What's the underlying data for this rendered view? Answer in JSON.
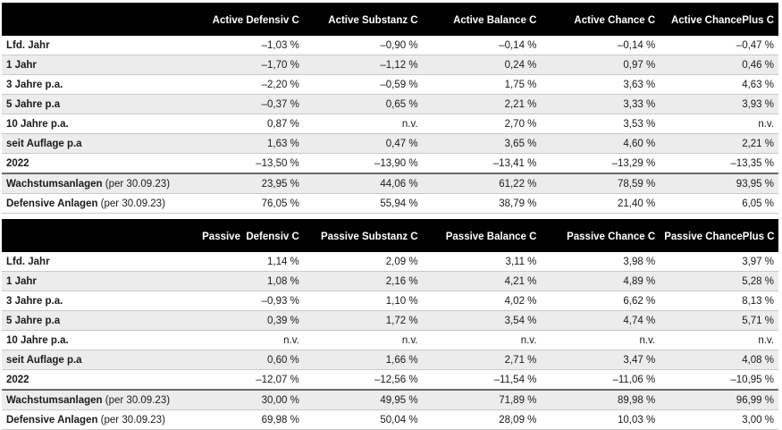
{
  "active": {
    "headers": [
      "Active Defensiv C",
      "Active Substanz C",
      "Active Balance C",
      "Active Chance C",
      "Active ChancePlus C"
    ],
    "rows": [
      {
        "label": "Lfd. Jahr",
        "values": [
          "–1,03 %",
          "–0,90 %",
          "–0,14 %",
          "–0,14 %",
          "–0,47 %"
        ]
      },
      {
        "label": "1 Jahr",
        "values": [
          "–1,70 %",
          "–1,12 %",
          "0,24 %",
          "0,97 %",
          "0,46 %"
        ]
      },
      {
        "label": "3 Jahre p.a.",
        "values": [
          "–2,20 %",
          "–0,59 %",
          "1,75 %",
          "3,63 %",
          "4,63 %"
        ]
      },
      {
        "label": "5 Jahre p.a",
        "values": [
          "–0,37 %",
          "0,65 %",
          "2,21 %",
          "3,33 %",
          "3,93 %"
        ]
      },
      {
        "label": "10 Jahre p.a.",
        "values": [
          "0,87 %",
          "n.v.",
          "2,70 %",
          "3,53 %",
          "n.v."
        ]
      },
      {
        "label": "seit Auflage p.a",
        "values": [
          "1,63 %",
          "0,47 %",
          "3,65 %",
          "4,60 %",
          "2,21 %"
        ]
      },
      {
        "label": "2022",
        "values": [
          "–13,50 %",
          "–13,90 %",
          "–13,41 %",
          "–13,29 %",
          "–13,35 %"
        ]
      },
      {
        "label": "Wachstumsanlagen",
        "note": "(per 30.09.23)",
        "values": [
          "23,95 %",
          "44,06 %",
          "61,22 %",
          "78,59 %",
          "93,95 %"
        ]
      },
      {
        "label": "Defensive Anlagen",
        "note": "(per 30.09.23)",
        "values": [
          "76,05 %",
          "55,94 %",
          "38,79 %",
          "21,40 %",
          "6,05 %"
        ]
      }
    ]
  },
  "passive": {
    "headers": [
      "Passive  Defensiv C",
      "Passive Substanz C",
      "Passive Balance C",
      "Passive Chance C",
      "Passive ChancePlus C"
    ],
    "rows": [
      {
        "label": "Lfd. Jahr",
        "values": [
          "1,14 %",
          "2,09 %",
          "3,11 %",
          "3,98 %",
          "3,97 %"
        ]
      },
      {
        "label": "1 Jahr",
        "values": [
          "1,08 %",
          "2,16 %",
          "4,21 %",
          "4,89 %",
          "5,28 %"
        ]
      },
      {
        "label": "3 Jahre p.a.",
        "values": [
          "–0,93 %",
          "1,10 %",
          "4,02 %",
          "6,62 %",
          "8,13 %"
        ]
      },
      {
        "label": "5 Jahre p.a",
        "values": [
          "0,39 %",
          "1,72 %",
          "3,54 %",
          "4,74 %",
          "5,71 %"
        ]
      },
      {
        "label": "10 Jahre p.a.",
        "values": [
          "n.v.",
          "n.v.",
          "n.v.",
          "n.v.",
          "n.v."
        ]
      },
      {
        "label": "seit Auflage p.a",
        "values": [
          "0,60 %",
          "1,66 %",
          "2,71 %",
          "3,47 %",
          "4,08 %"
        ]
      },
      {
        "label": "2022",
        "values": [
          "–12,07 %",
          "–12,56 %",
          "–11,54 %",
          "–11,06 %",
          "–10,95 %"
        ]
      },
      {
        "label": "Wachstumsanlagen",
        "note": "(per 30.09.23)",
        "values": [
          "30,00 %",
          "49,95 %",
          "71,89 %",
          "89,98 %",
          "96,99 %"
        ]
      },
      {
        "label": "Defensive Anlagen",
        "note": "(per 30.09.23)",
        "values": [
          "69,98 %",
          "50,04 %",
          "28,09 %",
          "10,03 %",
          "3,00 %"
        ]
      }
    ]
  }
}
